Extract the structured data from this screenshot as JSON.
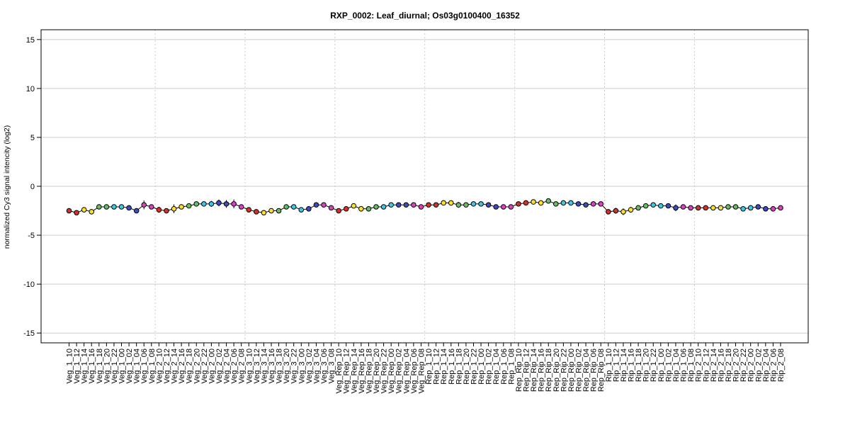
{
  "chart_data": {
    "type": "line",
    "title": "RXP_0002: Leaf_diurnal; Os03g0100400_16352",
    "xlabel": "",
    "ylabel": "normalized Cy3 signal intencity (log2)",
    "ylim": [
      -16,
      16
    ],
    "yticks": [
      -15,
      -10,
      -5,
      0,
      5,
      10,
      15
    ],
    "ytick_labels": [
      "-15",
      "-10",
      "-5",
      "0",
      "5",
      "10",
      "15"
    ],
    "grid": "horizontal",
    "group_separators_after": [
      "Veg_1_08",
      "Veg_2_08",
      "Veg_3_08",
      "Veg_Rep_08",
      "Rep_1_08",
      "Rep_Rip_08",
      "Rip_1_08"
    ],
    "x": [
      "Veg_1_10",
      "Veg_1_12",
      "Veg_1_14",
      "Veg_1_16",
      "Veg_1_18",
      "Veg_1_20",
      "Veg_1_22",
      "Veg_1_00",
      "Veg_1_02",
      "Veg_1_04",
      "Veg_1_06",
      "Veg_1_08",
      "Veg_2_10",
      "Veg_2_12",
      "Veg_2_14",
      "Veg_2_16",
      "Veg_2_18",
      "Veg_2_20",
      "Veg_2_22",
      "Veg_2_00",
      "Veg_2_02",
      "Veg_2_04",
      "Veg_2_06",
      "Veg_2_08",
      "Veg_3_10",
      "Veg_3_12",
      "Veg_3_14",
      "Veg_3_16",
      "Veg_3_18",
      "Veg_3_20",
      "Veg_3_22",
      "Veg_3_00",
      "Veg_3_02",
      "Veg_3_04",
      "Veg_3_06",
      "Veg_3_08",
      "Veg_Rep_10",
      "Veg_Rep_12",
      "Veg_Rep_14",
      "Veg_Rep_16",
      "Veg_Rep_18",
      "Veg_Rep_20",
      "Veg_Rep_22",
      "Veg_Rep_00",
      "Veg_Rep_02",
      "Veg_Rep_04",
      "Veg_Rep_06",
      "Veg_Rep_08",
      "Rep_1_10",
      "Rep_1_12",
      "Rep_1_14",
      "Rep_1_16",
      "Rep_1_18",
      "Rep_1_20",
      "Rep_1_22",
      "Rep_1_00",
      "Rep_1_02",
      "Rep_1_04",
      "Rep_1_06",
      "Rep_1_08",
      "Rep_Rip_10",
      "Rep_Rip_12",
      "Rep_Rip_14",
      "Rep_Rip_16",
      "Rep_Rip_18",
      "Rep_Rip_20",
      "Rep_Rip_22",
      "Rep_Rip_00",
      "Rep_Rip_02",
      "Rep_Rip_04",
      "Rep_Rip_06",
      "Rep_Rip_08",
      "Rip_1_10",
      "Rip_1_12",
      "Rip_1_14",
      "Rip_1_16",
      "Rip_1_18",
      "Rip_1_20",
      "Rip_1_22",
      "Rip_1_00",
      "Rip_1_02",
      "Rip_1_04",
      "Rip_1_06",
      "Rip_1_08",
      "Rip_2_10",
      "Rip_2_12",
      "Rip_2_14",
      "Rip_2_16",
      "Rip_2_18",
      "Rip_2_20",
      "Rip_2_22",
      "Rip_2_00",
      "Rip_2_02",
      "Rip_2_04",
      "Rip_2_06",
      "Rip_2_08"
    ],
    "series": [
      {
        "values": [
          -2.5,
          -2.7,
          -2.4,
          -2.6,
          -2.1,
          -2.1,
          -2.1,
          -2.1,
          -2.2,
          -2.5,
          -1.9,
          -2.1,
          -2.4,
          -2.5,
          -2.3,
          -2.1,
          -2.0,
          -1.8,
          -1.8,
          -1.8,
          -1.7,
          -1.8,
          -1.8,
          -2.1,
          -2.4,
          -2.6,
          -2.7,
          -2.5,
          -2.5,
          -2.1,
          -2.1,
          -2.4,
          -2.3,
          -1.9,
          -1.9,
          -2.2,
          -2.5,
          -2.3,
          -2.0,
          -2.3,
          -2.3,
          -2.1,
          -2.1,
          -1.9,
          -1.9,
          -1.9,
          -1.9,
          -2.1,
          -1.9,
          -1.9,
          -1.7,
          -1.7,
          -1.9,
          -1.9,
          -1.8,
          -1.8,
          -1.9,
          -2.1,
          -2.1,
          -2.1,
          -1.8,
          -1.7,
          -1.6,
          -1.7,
          -1.5,
          -1.8,
          -1.7,
          -1.7,
          -1.8,
          -1.9,
          -1.8,
          -1.8,
          -2.6,
          -2.5,
          -2.6,
          -2.4,
          -2.2,
          -2.0,
          -1.9,
          -2.0,
          -2.0,
          -2.2,
          -2.1,
          -2.2,
          -2.2,
          -2.2,
          -2.2,
          -2.2,
          -2.1,
          -2.1,
          -2.3,
          -2.2,
          -2.1,
          -2.3,
          -2.3,
          -2.2
        ],
        "errors": [
          0.15,
          0.1,
          0.1,
          0.1,
          0.12,
          0.1,
          0.1,
          0.1,
          0.1,
          0.1,
          0.45,
          0.2,
          0.3,
          0.1,
          0.45,
          0.2,
          0.15,
          0.15,
          0.1,
          0.3,
          0.35,
          0.4,
          0.45,
          0.1,
          0.15,
          0.1,
          0.1,
          0.1,
          0.1,
          0.25,
          0.1,
          0.15,
          0.2,
          0.15,
          0.1,
          0.1,
          0.2,
          0.15,
          0.25,
          0.1,
          0.1,
          0.1,
          0.1,
          0.1,
          0.15,
          0.15,
          0.1,
          0.1,
          0.1,
          0.1,
          0.1,
          0.2,
          0.3,
          0.25,
          0.1,
          0.1,
          0.1,
          0.1,
          0.1,
          0.1,
          0.1,
          0.1,
          0.1,
          0.1,
          0.1,
          0.1,
          0.1,
          0.1,
          0.1,
          0.1,
          0.1,
          0.1,
          0.2,
          0.3,
          0.35,
          0.3,
          0.25,
          0.2,
          0.1,
          0.1,
          0.1,
          0.35,
          0.1,
          0.1,
          0.1,
          0.1,
          0.1,
          0.15,
          0.1,
          0.1,
          0.1,
          0.1,
          0.1,
          0.1,
          0.1,
          0.1
        ],
        "colors": [
          "#d73027",
          "#d73027",
          "#fee12b",
          "#fee12b",
          "#66bd63",
          "#66bd63",
          "#3cc8e6",
          "#3cc8e6",
          "#3b4cc0",
          "#3b4cc0",
          "#e03fc8",
          "#e03fc8",
          "#d73027",
          "#d73027",
          "#fee12b",
          "#fee12b",
          "#66bd63",
          "#66bd63",
          "#3cc8e6",
          "#3cc8e6",
          "#3b4cc0",
          "#3b4cc0",
          "#e03fc8",
          "#e03fc8",
          "#d73027",
          "#d73027",
          "#fee12b",
          "#fee12b",
          "#66bd63",
          "#66bd63",
          "#3cc8e6",
          "#3cc8e6",
          "#3b4cc0",
          "#3b4cc0",
          "#e03fc8",
          "#e03fc8",
          "#d73027",
          "#d73027",
          "#fee12b",
          "#fee12b",
          "#66bd63",
          "#66bd63",
          "#3cc8e6",
          "#3cc8e6",
          "#3b4cc0",
          "#3b4cc0",
          "#e03fc8",
          "#e03fc8",
          "#d73027",
          "#d73027",
          "#fee12b",
          "#fee12b",
          "#66bd63",
          "#66bd63",
          "#3cc8e6",
          "#3cc8e6",
          "#3b4cc0",
          "#3b4cc0",
          "#e03fc8",
          "#e03fc8",
          "#d73027",
          "#d73027",
          "#fee12b",
          "#fee12b",
          "#66bd63",
          "#66bd63",
          "#3cc8e6",
          "#3cc8e6",
          "#3b4cc0",
          "#3b4cc0",
          "#e03fc8",
          "#e03fc8",
          "#d73027",
          "#d73027",
          "#fee12b",
          "#fee12b",
          "#66bd63",
          "#66bd63",
          "#3cc8e6",
          "#3cc8e6",
          "#3b4cc0",
          "#3b4cc0",
          "#e03fc8",
          "#e03fc8",
          "#d73027",
          "#d73027",
          "#fee12b",
          "#fee12b",
          "#66bd63",
          "#66bd63",
          "#3cc8e6",
          "#3cc8e6",
          "#3b4cc0",
          "#3b4cc0",
          "#e03fc8",
          "#e03fc8"
        ]
      }
    ]
  }
}
